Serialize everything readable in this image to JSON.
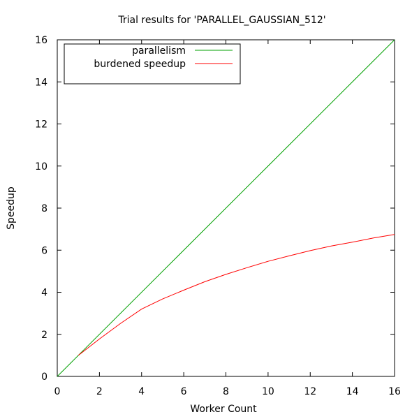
{
  "chart_data": {
    "type": "line",
    "title": "Trial results for 'PARALLEL_GAUSSIAN_512'",
    "xlabel": "Worker Count",
    "ylabel": "Speedup",
    "xlim": [
      0,
      16
    ],
    "ylim": [
      0,
      16
    ],
    "xticks": [
      0,
      2,
      4,
      6,
      8,
      10,
      12,
      14,
      16
    ],
    "yticks": [
      0,
      2,
      4,
      6,
      8,
      10,
      12,
      14,
      16
    ],
    "grid": false,
    "legend_position": "top-left",
    "series": [
      {
        "name": "parallelism",
        "color": "#00a000",
        "x": [
          0,
          16
        ],
        "y": [
          0,
          16
        ]
      },
      {
        "name": "burdened speedup",
        "color": "#ff0000",
        "x": [
          1,
          2,
          3,
          4,
          5,
          6,
          7,
          8,
          9,
          10,
          11,
          12,
          13,
          14,
          15,
          16
        ],
        "y": [
          1.0,
          1.78,
          2.52,
          3.2,
          3.68,
          4.1,
          4.5,
          4.85,
          5.17,
          5.47,
          5.73,
          5.98,
          6.2,
          6.38,
          6.58,
          6.75
        ]
      }
    ]
  }
}
